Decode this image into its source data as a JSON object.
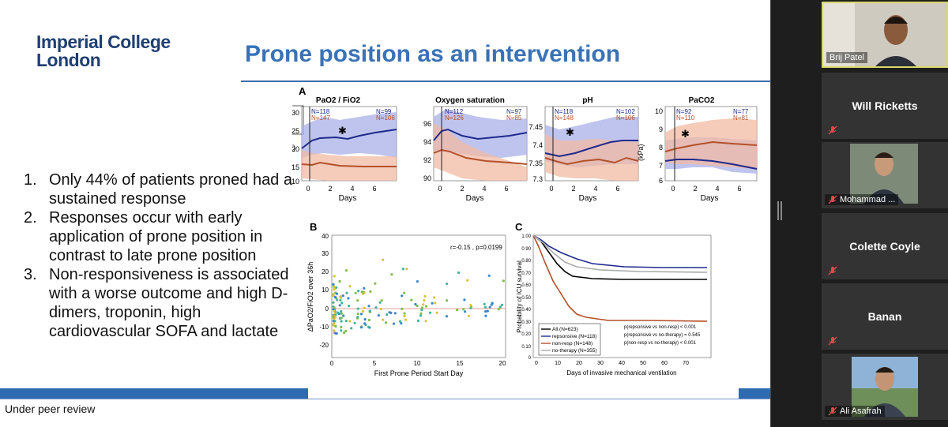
{
  "slide": {
    "logo_line1": "Imperial College",
    "logo_line2": "London",
    "title": "Prone position as an intervention",
    "bullets": [
      {
        "num": "1.",
        "text": "Only 44% of patients proned had a sustained response"
      },
      {
        "num": "2.",
        "text": "Responses occur with early application of prone position in contrast to late prone position"
      },
      {
        "num": "3.",
        "text": "Non-responsiveness is associated with a worse outcome and high D-dimers, troponin, high cardiovascular SOFA and lactate"
      }
    ],
    "footer": "Under peer review"
  },
  "figure": {
    "panel_a_label": "A",
    "panel_b_label": "B",
    "panel_c_label": "C",
    "legend": [
      "repsonsive",
      "non-resp"
    ],
    "colors": {
      "responsive": "#1f2a8c",
      "non_resp": "#b5502a",
      "resp_band": "#aab0e8",
      "nonresp_band": "#f2b9a3"
    },
    "small_plots": [
      {
        "title": "PaO2 / FiO2",
        "ylabel": "()",
        "yticks": [
          "30",
          "25",
          "20",
          "15",
          "10"
        ],
        "n_top_left": "N=118",
        "n_bot_left": "N=147",
        "n_top_right": "N=99",
        "n_bot_right": "N=106"
      },
      {
        "title": "Oxygen saturation",
        "ylabel": "",
        "yticks": [
          "96",
          "94",
          "92",
          "90"
        ],
        "n_top_left": "N=112",
        "n_bot_left": "N=126",
        "n_top_right": "N=97",
        "n_bot_right": "N=85"
      },
      {
        "title": "pH",
        "ylabel": "",
        "yticks": [
          "7.45",
          "7.4",
          "7.35",
          "7.3"
        ],
        "n_top_left": "N=118",
        "n_bot_left": "N=148",
        "n_top_right": "N=102",
        "n_bot_right": "N=106"
      },
      {
        "title": "PaCO2",
        "ylabel": "(kPa)",
        "yticks": [
          "10",
          "9",
          "8",
          "7",
          "6"
        ],
        "n_top_left": "N=92",
        "n_bot_left": "N=110",
        "n_top_right": "N=77",
        "n_bot_right": "N=81"
      }
    ],
    "small_xticks": [
      "0",
      "2",
      "4",
      "6"
    ],
    "small_xlabel": "Days",
    "star": "✱",
    "scatter": {
      "ylabel": "ΔPaO2/FiO2 over 36h",
      "xlabel": "First Prone Period Start Day",
      "annotation": "r=-0.15 , p=0.0199",
      "yticks": [
        "40",
        "30",
        "20",
        "10",
        "0",
        "-10",
        "-20"
      ],
      "xticks": [
        "0",
        "5",
        "10",
        "15",
        "20"
      ]
    },
    "survival": {
      "ylabel": "Probability of ICU survival",
      "xlabel": "Days of invasive mechanical ventilation",
      "yticks": [
        "1.00",
        "0.90",
        "0.80",
        "0.70",
        "0.60",
        "0.50",
        "0.40",
        "0.30",
        "0.20",
        "0.10",
        "0"
      ],
      "xticks": [
        "0",
        "10",
        "20",
        "30",
        "40",
        "50",
        "60",
        "70"
      ],
      "legend": [
        "All (N=623)",
        "repsonsive (N=118)",
        "non-resp (N=148)",
        "no-therapy (N=355)"
      ],
      "pvalues": [
        "p(repsonsive vs non-resp) < 0.001",
        "p(repsonsive vs no-therapy) = 0.545",
        "p(non-resp vs no-therapy) < 0.001"
      ]
    }
  },
  "participants": [
    {
      "name": "Brij Patel",
      "kind": "video"
    },
    {
      "name": "Will Ricketts",
      "kind": "name"
    },
    {
      "name": "Mohammad ...",
      "kind": "photo"
    },
    {
      "name": "Colette Coyle",
      "kind": "name"
    },
    {
      "name": "Banan",
      "kind": "name"
    },
    {
      "name": "Ali Asafrah",
      "kind": "photo"
    }
  ]
}
